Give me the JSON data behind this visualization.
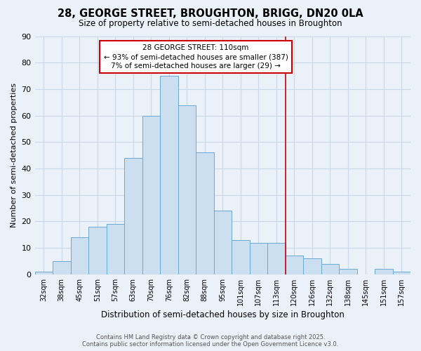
{
  "title": "28, GEORGE STREET, BROUGHTON, BRIGG, DN20 0LA",
  "subtitle": "Size of property relative to semi-detached houses in Broughton",
  "xlabel": "Distribution of semi-detached houses by size in Broughton",
  "ylabel": "Number of semi-detached properties",
  "bar_labels": [
    "32sqm",
    "38sqm",
    "45sqm",
    "51sqm",
    "57sqm",
    "63sqm",
    "70sqm",
    "76sqm",
    "82sqm",
    "88sqm",
    "95sqm",
    "101sqm",
    "107sqm",
    "113sqm",
    "120sqm",
    "126sqm",
    "132sqm",
    "138sqm",
    "145sqm",
    "151sqm",
    "157sqm"
  ],
  "bar_values": [
    1,
    5,
    14,
    18,
    19,
    44,
    60,
    75,
    64,
    46,
    24,
    13,
    12,
    12,
    7,
    6,
    4,
    2,
    0,
    2,
    1
  ],
  "bar_color": "#ccdff0",
  "bar_edge_color": "#6aaad4",
  "grid_color": "#c8d8e8",
  "background_color": "#eaf1f8",
  "vline_x": 13.5,
  "vline_color": "#cc0000",
  "annotation_title": "28 GEORGE STREET: 110sqm",
  "annotation_line1": "← 93% of semi-detached houses are smaller (387)",
  "annotation_line2": "7% of semi-detached houses are larger (29) →",
  "annotation_box_color": "#ffffff",
  "annotation_border_color": "#cc0000",
  "ylim": [
    0,
    90
  ],
  "yticks": [
    0,
    10,
    20,
    30,
    40,
    50,
    60,
    70,
    80,
    90
  ],
  "footer_line1": "Contains HM Land Registry data © Crown copyright and database right 2025.",
  "footer_line2": "Contains public sector information licensed under the Open Government Licence v3.0."
}
